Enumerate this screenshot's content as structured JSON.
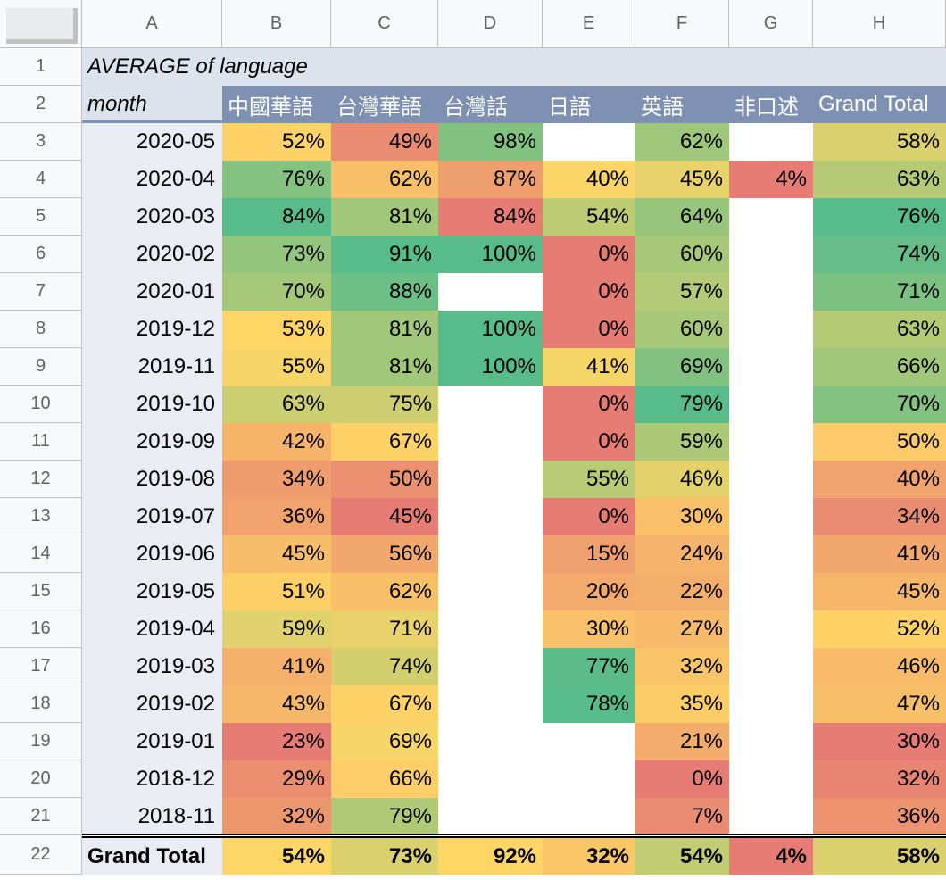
{
  "columns": [
    "A",
    "B",
    "C",
    "D",
    "E",
    "F",
    "G",
    "H"
  ],
  "row_numbers": [
    "1",
    "2",
    "3",
    "4",
    "5",
    "6",
    "7",
    "8",
    "9",
    "10",
    "11",
    "12",
    "13",
    "14",
    "15",
    "16",
    "17",
    "18",
    "19",
    "20",
    "21",
    "22"
  ],
  "pivot": {
    "title": "AVERAGE of language",
    "row_header": "month",
    "languages": [
      "中國華語",
      "台灣華語",
      "台灣話",
      "日語",
      "英語",
      "非口述",
      "Grand Total"
    ],
    "rows": [
      {
        "month": "2020-05",
        "values": [
          "52%",
          "49%",
          "98%",
          "",
          "62%",
          "",
          "58%"
        ]
      },
      {
        "month": "2020-04",
        "values": [
          "76%",
          "62%",
          "87%",
          "40%",
          "45%",
          "4%",
          "63%"
        ]
      },
      {
        "month": "2020-03",
        "values": [
          "84%",
          "81%",
          "84%",
          "54%",
          "64%",
          "",
          "76%"
        ]
      },
      {
        "month": "2020-02",
        "values": [
          "73%",
          "91%",
          "100%",
          "0%",
          "60%",
          "",
          "74%"
        ]
      },
      {
        "month": "2020-01",
        "values": [
          "70%",
          "88%",
          "",
          "0%",
          "57%",
          "",
          "71%"
        ]
      },
      {
        "month": "2019-12",
        "values": [
          "53%",
          "81%",
          "100%",
          "0%",
          "60%",
          "",
          "63%"
        ]
      },
      {
        "month": "2019-11",
        "values": [
          "55%",
          "81%",
          "100%",
          "41%",
          "69%",
          "",
          "66%"
        ]
      },
      {
        "month": "2019-10",
        "values": [
          "63%",
          "75%",
          "",
          "0%",
          "79%",
          "",
          "70%"
        ]
      },
      {
        "month": "2019-09",
        "values": [
          "42%",
          "67%",
          "",
          "0%",
          "59%",
          "",
          "50%"
        ]
      },
      {
        "month": "2019-08",
        "values": [
          "34%",
          "50%",
          "",
          "55%",
          "46%",
          "",
          "40%"
        ]
      },
      {
        "month": "2019-07",
        "values": [
          "36%",
          "45%",
          "",
          "0%",
          "30%",
          "",
          "34%"
        ]
      },
      {
        "month": "2019-06",
        "values": [
          "45%",
          "56%",
          "",
          "15%",
          "24%",
          "",
          "41%"
        ]
      },
      {
        "month": "2019-05",
        "values": [
          "51%",
          "62%",
          "",
          "20%",
          "22%",
          "",
          "45%"
        ]
      },
      {
        "month": "2019-04",
        "values": [
          "59%",
          "71%",
          "",
          "30%",
          "27%",
          "",
          "52%"
        ]
      },
      {
        "month": "2019-03",
        "values": [
          "41%",
          "74%",
          "",
          "77%",
          "32%",
          "",
          "46%"
        ]
      },
      {
        "month": "2019-02",
        "values": [
          "43%",
          "67%",
          "",
          "78%",
          "35%",
          "",
          "47%"
        ]
      },
      {
        "month": "2019-01",
        "values": [
          "23%",
          "69%",
          "",
          "",
          "21%",
          "",
          "30%"
        ]
      },
      {
        "month": "2018-12",
        "values": [
          "29%",
          "66%",
          "",
          "",
          "0%",
          "",
          "32%"
        ]
      },
      {
        "month": "2018-11",
        "values": [
          "32%",
          "79%",
          "",
          "",
          "7%",
          "",
          "36%"
        ]
      }
    ],
    "total": {
      "label": "Grand Total",
      "values": [
        "54%",
        "73%",
        "92%",
        "32%",
        "54%",
        "4%",
        "58%"
      ]
    },
    "colors": {
      "low": "#e67c73",
      "mid": "#ffd666",
      "high": "#57bb8a",
      "header_bg": "#7e91b3",
      "title_bg": "#dde3ec",
      "month_bg": "#e9edf3"
    }
  }
}
